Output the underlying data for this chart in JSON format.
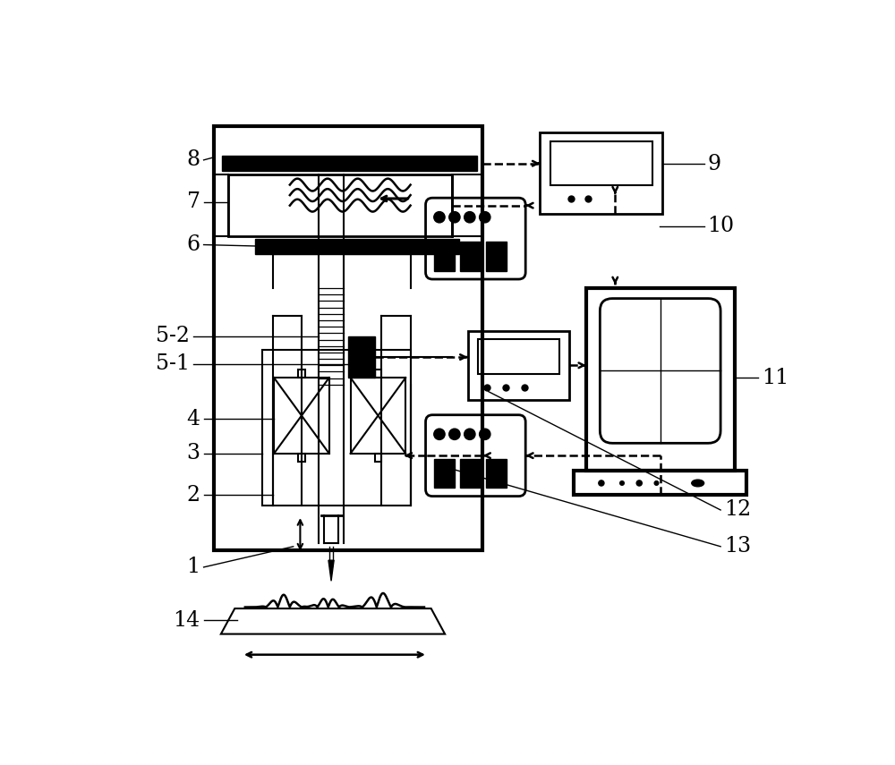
{
  "fig_width": 10.0,
  "fig_height": 8.55,
  "dpi": 100,
  "bg_color": "#ffffff"
}
